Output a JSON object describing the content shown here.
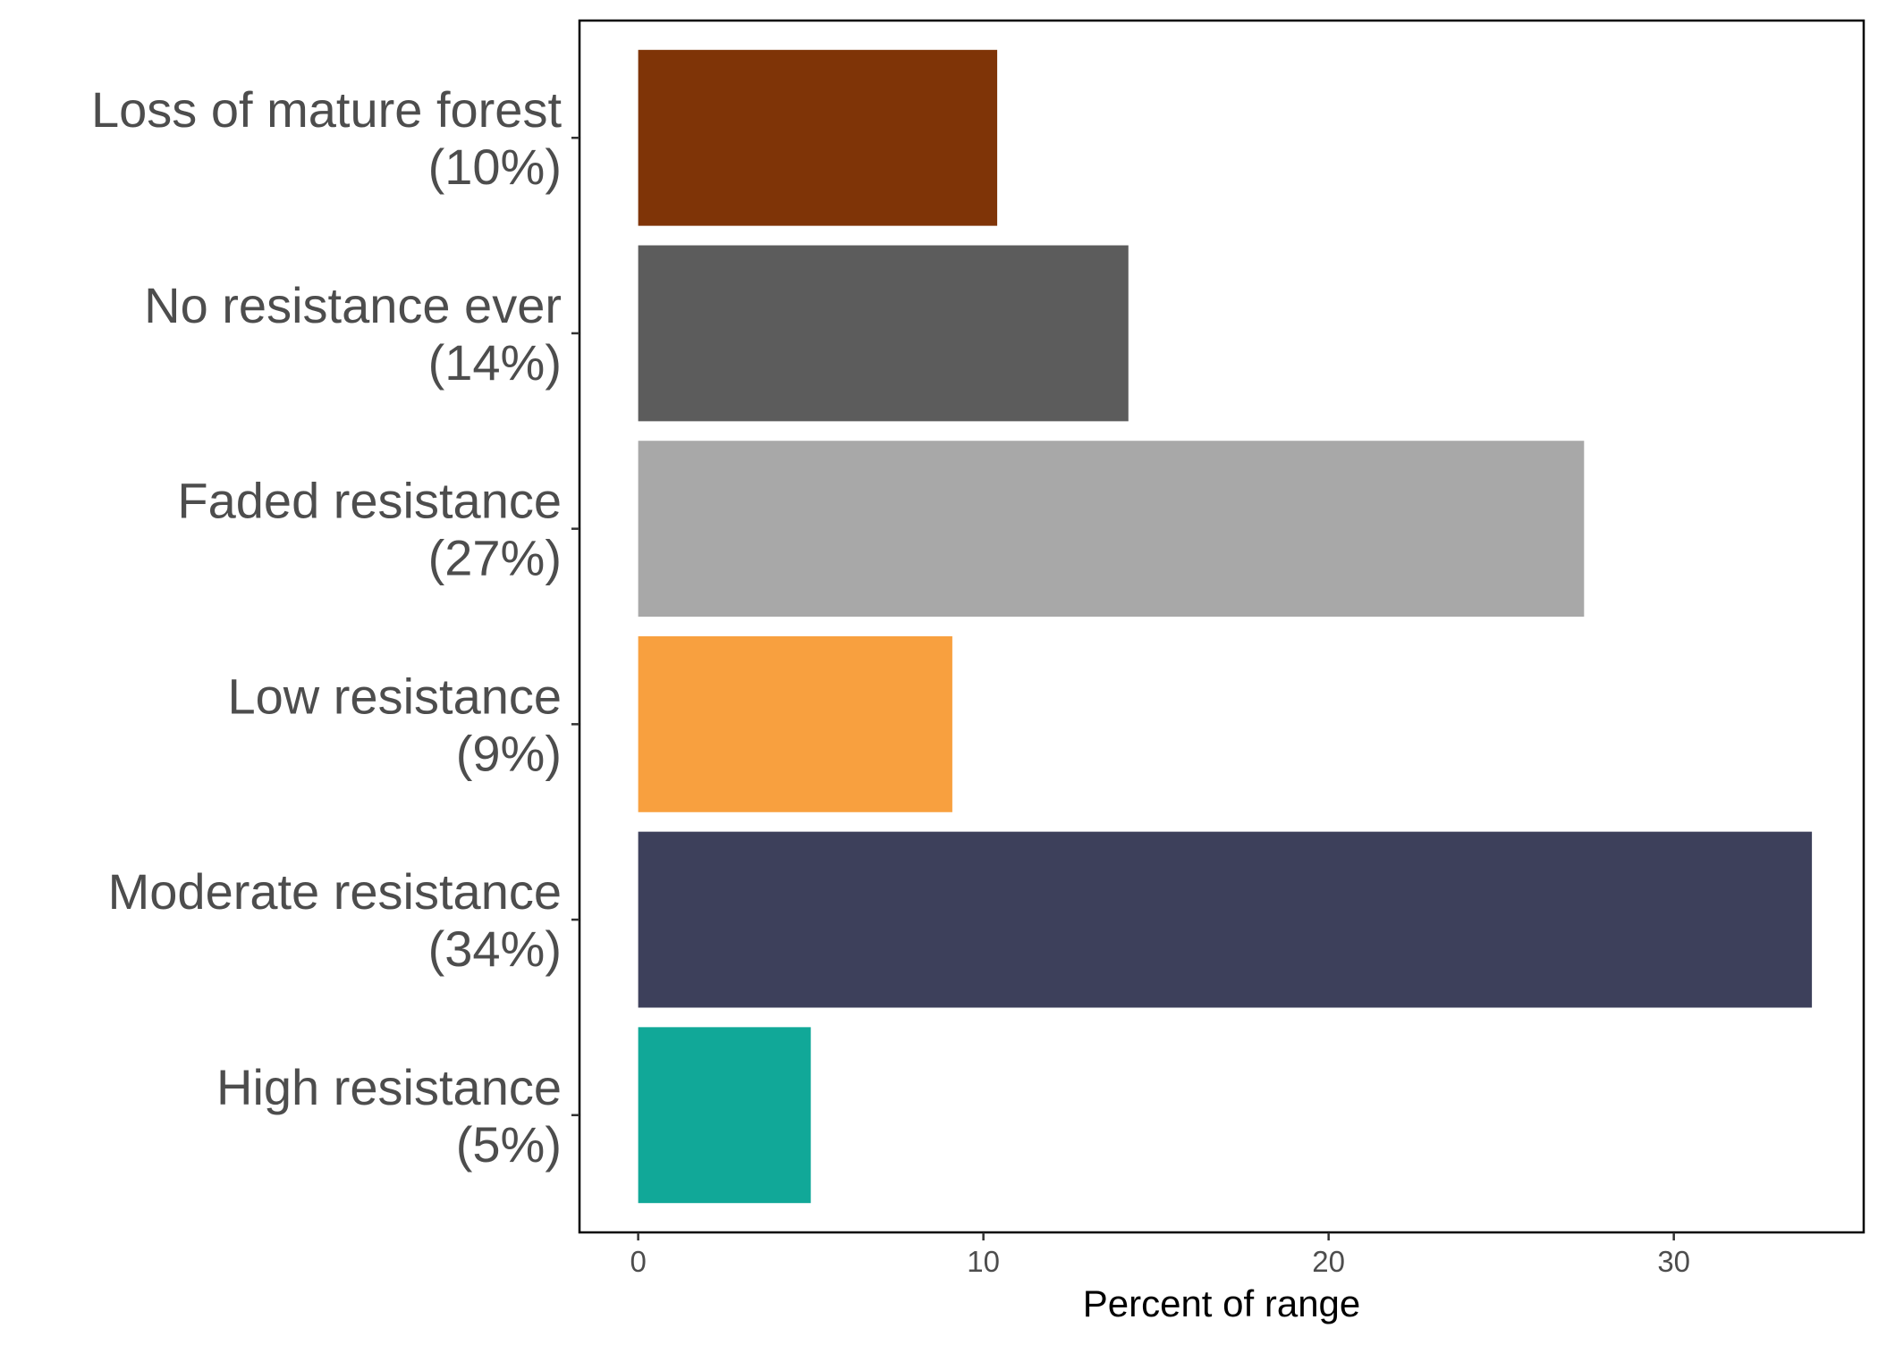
{
  "chart_data": {
    "type": "bar",
    "orientation": "horizontal",
    "title": "",
    "xlabel": "Percent of range",
    "ylabel": "",
    "categories": [
      {
        "name": "High resistance",
        "pct_label": "(5%)",
        "value": 5.0,
        "color": "#11a898"
      },
      {
        "name": "Moderate resistance",
        "pct_label": "(34%)",
        "value": 34.0,
        "color": "#3d405b"
      },
      {
        "name": "Low resistance",
        "pct_label": "(9%)",
        "value": 9.1,
        "color": "#f8a03f"
      },
      {
        "name": "Faded resistance",
        "pct_label": "(27%)",
        "value": 27.4,
        "color": "#a8a8a8"
      },
      {
        "name": "No resistance ever",
        "pct_label": "(14%)",
        "value": 14.2,
        "color": "#5c5c5c"
      },
      {
        "name": "Loss of mature forest",
        "pct_label": "(10%)",
        "value": 10.4,
        "color": "#7f3407"
      }
    ],
    "xlim": [
      -1.7,
      35.5
    ],
    "xticks": [
      0,
      10,
      20,
      30
    ],
    "xtick_labels": [
      "0",
      "10",
      "20",
      "30"
    ],
    "grid": false,
    "legend": "none"
  }
}
